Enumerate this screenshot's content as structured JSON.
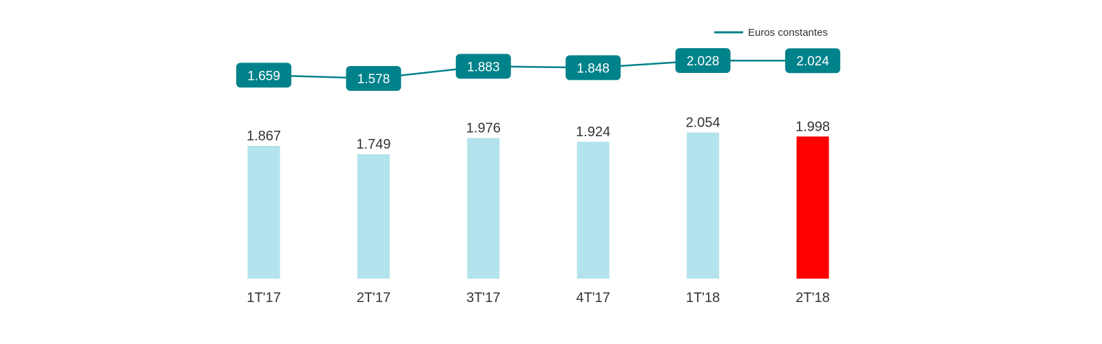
{
  "chart_data": {
    "type": "bar",
    "categories": [
      "1T'17",
      "2T'17",
      "3T'17",
      "4T'17",
      "1T'18",
      "2T'18"
    ],
    "series": [
      {
        "type": "bar",
        "values": [
          1867,
          1749,
          1976,
          1924,
          2054,
          1998
        ],
        "value_labels": [
          "1.867",
          "1.749",
          "1.976",
          "1.924",
          "2.054",
          "1.998"
        ],
        "colors": [
          "#b3e3ec",
          "#b3e3ec",
          "#b3e3ec",
          "#b3e3ec",
          "#b3e3ec",
          "#ff0000"
        ]
      },
      {
        "type": "line",
        "name": "Euros constantes",
        "values": [
          1659,
          1578,
          1883,
          1848,
          2028,
          2024
        ],
        "value_labels": [
          "1.659",
          "1.578",
          "1.883",
          "1.848",
          "2.028",
          "2.024"
        ],
        "color": "#00828a"
      }
    ],
    "legend": {
      "position": "top-right",
      "label": "Euros constantes"
    },
    "grid": false,
    "title": "",
    "xlabel": "",
    "ylabel": ""
  }
}
